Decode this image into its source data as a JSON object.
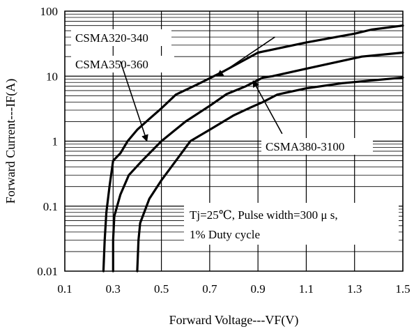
{
  "chart_data": {
    "type": "line",
    "x_scale": "linear",
    "y_scale": "log",
    "xlim": [
      0.1,
      1.5
    ],
    "ylim": [
      0.01,
      100
    ],
    "grid": true,
    "xlabel": "Forward Voltage---VF(V)",
    "ylabel": "Forward Current---IF(A)",
    "x_ticks": [
      0.1,
      0.3,
      0.5,
      0.7,
      0.9,
      1.1,
      1.3,
      1.5
    ],
    "x_tick_labels": [
      "0.1",
      "0.3",
      "0.5",
      "0.7",
      "0.9",
      "1.1",
      "1.3",
      "1.5"
    ],
    "y_ticks": [
      0.01,
      0.1,
      1,
      10,
      100
    ],
    "y_tick_labels": [
      "0.01",
      "0.1",
      "1",
      "10",
      "100"
    ],
    "series": [
      {
        "name": "CSMA320-340",
        "points": [
          [
            0.26,
            0.01
          ],
          [
            0.265,
            0.03
          ],
          [
            0.272,
            0.08
          ],
          [
            0.285,
            0.2
          ],
          [
            0.3,
            0.5
          ],
          [
            0.33,
            0.65
          ],
          [
            0.36,
            1.0
          ],
          [
            0.4,
            1.5
          ],
          [
            0.45,
            2.2
          ],
          [
            0.5,
            3.2
          ],
          [
            0.56,
            5.2
          ],
          [
            0.65,
            7.5
          ],
          [
            0.76,
            12.0
          ],
          [
            0.9,
            23.0
          ],
          [
            1.1,
            33.0
          ],
          [
            1.3,
            45.0
          ],
          [
            1.37,
            52.0
          ],
          [
            1.5,
            60.0
          ]
        ]
      },
      {
        "name": "CSMA350-360",
        "points": [
          [
            0.3,
            0.01
          ],
          [
            0.3,
            0.03
          ],
          [
            0.305,
            0.07
          ],
          [
            0.33,
            0.15
          ],
          [
            0.365,
            0.3
          ],
          [
            0.42,
            0.5
          ],
          [
            0.5,
            1.0
          ],
          [
            0.6,
            2.0
          ],
          [
            0.7,
            3.5
          ],
          [
            0.77,
            5.3
          ],
          [
            0.85,
            7.0
          ],
          [
            0.92,
            9.5
          ],
          [
            0.96,
            10.0
          ],
          [
            1.1,
            13.0
          ],
          [
            1.33,
            20.0
          ],
          [
            1.5,
            23.0
          ]
        ]
      },
      {
        "name": "CSMA380-3100",
        "points": [
          [
            0.4,
            0.01
          ],
          [
            0.405,
            0.03
          ],
          [
            0.412,
            0.055
          ],
          [
            0.45,
            0.13
          ],
          [
            0.5,
            0.25
          ],
          [
            0.56,
            0.5
          ],
          [
            0.62,
            1.0
          ],
          [
            0.7,
            1.5
          ],
          [
            0.8,
            2.5
          ],
          [
            0.87,
            3.3
          ],
          [
            0.92,
            4.0
          ],
          [
            0.98,
            5.2
          ],
          [
            1.1,
            6.5
          ],
          [
            1.25,
            7.8
          ],
          [
            1.5,
            9.5
          ]
        ]
      }
    ],
    "series_labels": [
      {
        "text": "CSMA320-340",
        "arrow_from": [
          0.97,
          40
        ],
        "arrow_to": [
          0.73,
          10
        ]
      },
      {
        "text": "CSMA350-360",
        "arrow_from": [
          0.33,
          17
        ],
        "arrow_to": [
          0.44,
          1.0
        ]
      },
      {
        "text": "CSMA380-3100",
        "arrow_from": [
          1.0,
          1.3
        ],
        "arrow_to": [
          0.88,
          8.5
        ]
      }
    ],
    "annotation": [
      "Tj=25℃, Pulse width=300 μ s,",
      "1% Duty cycle"
    ]
  }
}
